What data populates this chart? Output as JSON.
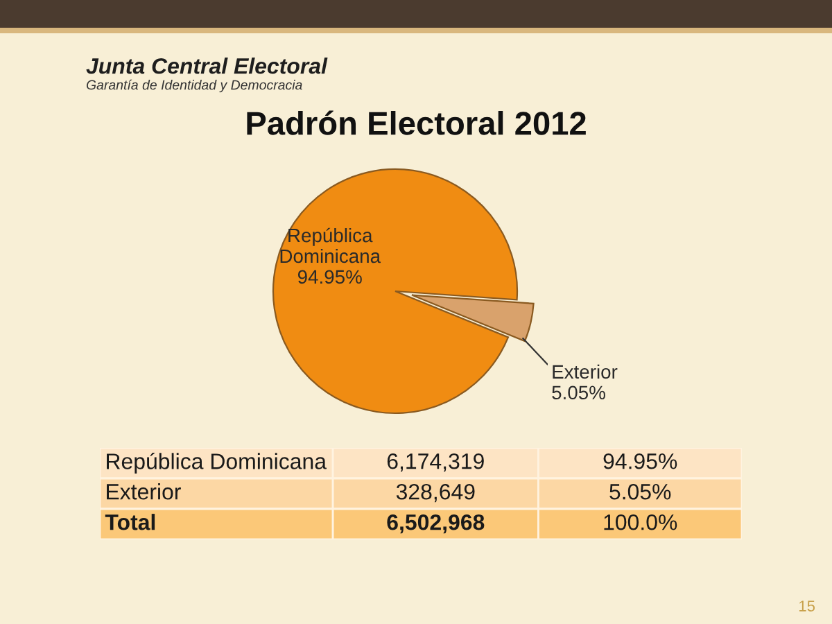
{
  "chart_data": {
    "type": "pie",
    "title": "Padrón Electoral 2012",
    "categories": [
      "República Dominicana",
      "Exterior"
    ],
    "values": [
      94.95,
      5.05
    ],
    "colors": [
      "#f08c12",
      "#d9a26c"
    ],
    "value_labels": [
      "94.95%",
      "5.05%"
    ],
    "annotations": [
      "Junta Central Electoral",
      "Garantía de Identidad y Democracia",
      "República Dominicana",
      "6,174,319",
      "94.95%",
      "Exterior",
      "328,649",
      "5.05%",
      "Total",
      "6,502,968",
      "100.0%",
      "15"
    ]
  }
}
